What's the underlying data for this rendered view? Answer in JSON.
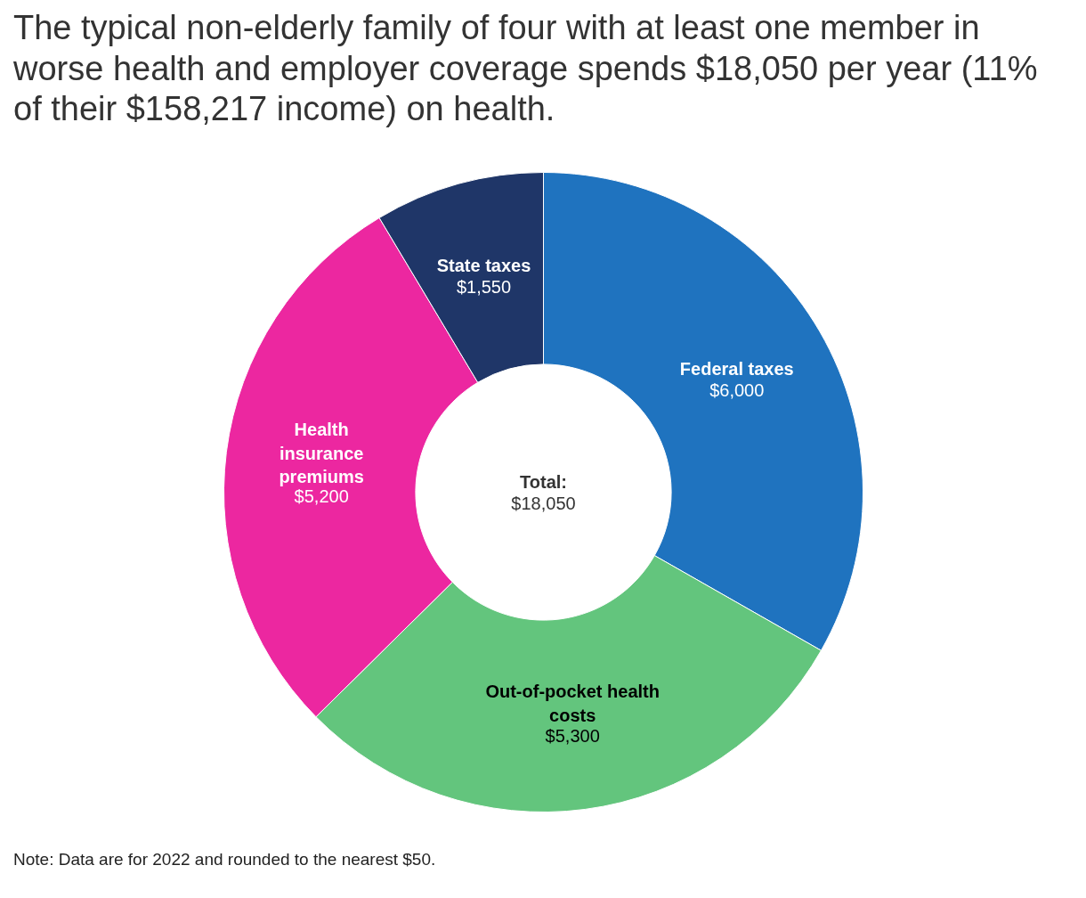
{
  "chart_data": {
    "type": "donut",
    "title": "The typical non-elderly family of four with at least one member in worse health and employer coverage spends $18,050 per year (11% of their $158,217 income) on health.",
    "categories": [
      "Federal taxes",
      "Out-of-pocket health costs",
      "Health insurance premiums",
      "State taxes"
    ],
    "values": [
      6000,
      5300,
      5200,
      1550
    ],
    "colors": [
      "#1f73bf",
      "#63c57d",
      "#ec27a0",
      "#1f3668"
    ],
    "value_labels": [
      "$6,000",
      "$5,300",
      "$5,200",
      "$1,550"
    ],
    "annotations": [
      "Total:\n$18,050",
      "Note: Data are for 2022 and rounded to the nearest $50."
    ]
  }
}
